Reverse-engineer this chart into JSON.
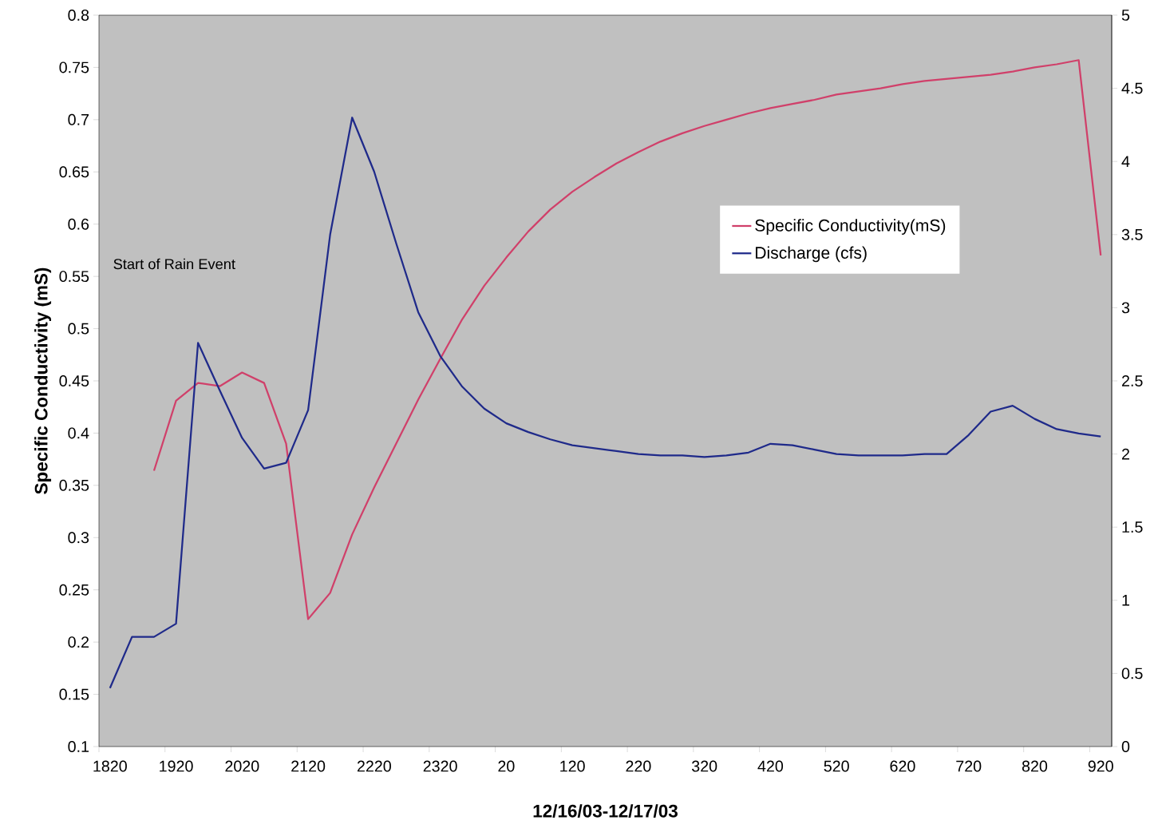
{
  "chart_data": {
    "type": "line",
    "xlabel": "12/16/03-12/17/03",
    "ylabel": "Specific Conductivity (mS)",
    "categories": [
      "1820",
      null,
      null,
      "1920",
      null,
      null,
      "2020",
      null,
      null,
      "2120",
      null,
      null,
      "2220",
      null,
      null,
      "2320",
      null,
      null,
      "20",
      null,
      null,
      "120",
      null,
      null,
      "220",
      null,
      null,
      "320",
      null,
      null,
      "420",
      null,
      null,
      "520",
      null,
      null,
      "620",
      null,
      null,
      "720",
      null,
      null,
      "820",
      null,
      null,
      "920"
    ],
    "ylim": [
      0.1,
      0.8
    ],
    "yticks": [
      0.1,
      0.15,
      0.2,
      0.25,
      0.3,
      0.35,
      0.4,
      0.45,
      0.5,
      0.55,
      0.6,
      0.65,
      0.7,
      0.75,
      0.8
    ],
    "y2lim": [
      0,
      5
    ],
    "y2ticks": [
      0,
      0.5,
      1,
      1.5,
      2,
      2.5,
      3,
      3.5,
      4,
      4.5,
      5
    ],
    "series": [
      {
        "name": "Specific Conductivity(mS)",
        "color": "#d0406a",
        "values": [
          null,
          null,
          0.364,
          0.431,
          0.448,
          0.445,
          0.458,
          0.448,
          0.39,
          0.222,
          0.247,
          0.303,
          0.348,
          0.39,
          0.432,
          0.471,
          0.509,
          0.541,
          0.568,
          0.593,
          0.614,
          0.631,
          0.645,
          0.658,
          0.669,
          0.679,
          0.687,
          0.694,
          0.7,
          0.706,
          0.711,
          0.715,
          0.719,
          0.724,
          0.727,
          0.73,
          0.734,
          0.737,
          0.739,
          0.741,
          0.743,
          0.746,
          0.75,
          0.753,
          0.757,
          0.57
        ]
      },
      {
        "name": "Discharge (cfs)",
        "color": "#1f2a8a",
        "axis": "y2",
        "values": [
          0.4,
          0.75,
          0.75,
          0.84,
          2.76,
          2.43,
          2.11,
          1.9,
          1.94,
          2.3,
          3.5,
          4.3,
          3.93,
          3.44,
          2.97,
          2.67,
          2.46,
          2.31,
          2.21,
          2.15,
          2.1,
          2.06,
          2.04,
          2.02,
          2.0,
          1.99,
          1.99,
          1.98,
          1.99,
          2.01,
          2.07,
          2.06,
          2.03,
          2.0,
          1.99,
          1.99,
          1.99,
          2.0,
          2.0,
          2.13,
          2.29,
          2.33,
          2.24,
          2.17,
          2.14,
          2.12
        ]
      }
    ],
    "annotations": [
      "Start of Rain Event"
    ],
    "legend": "right",
    "grid": false,
    "marker": "none",
    "line_style": "solid"
  }
}
